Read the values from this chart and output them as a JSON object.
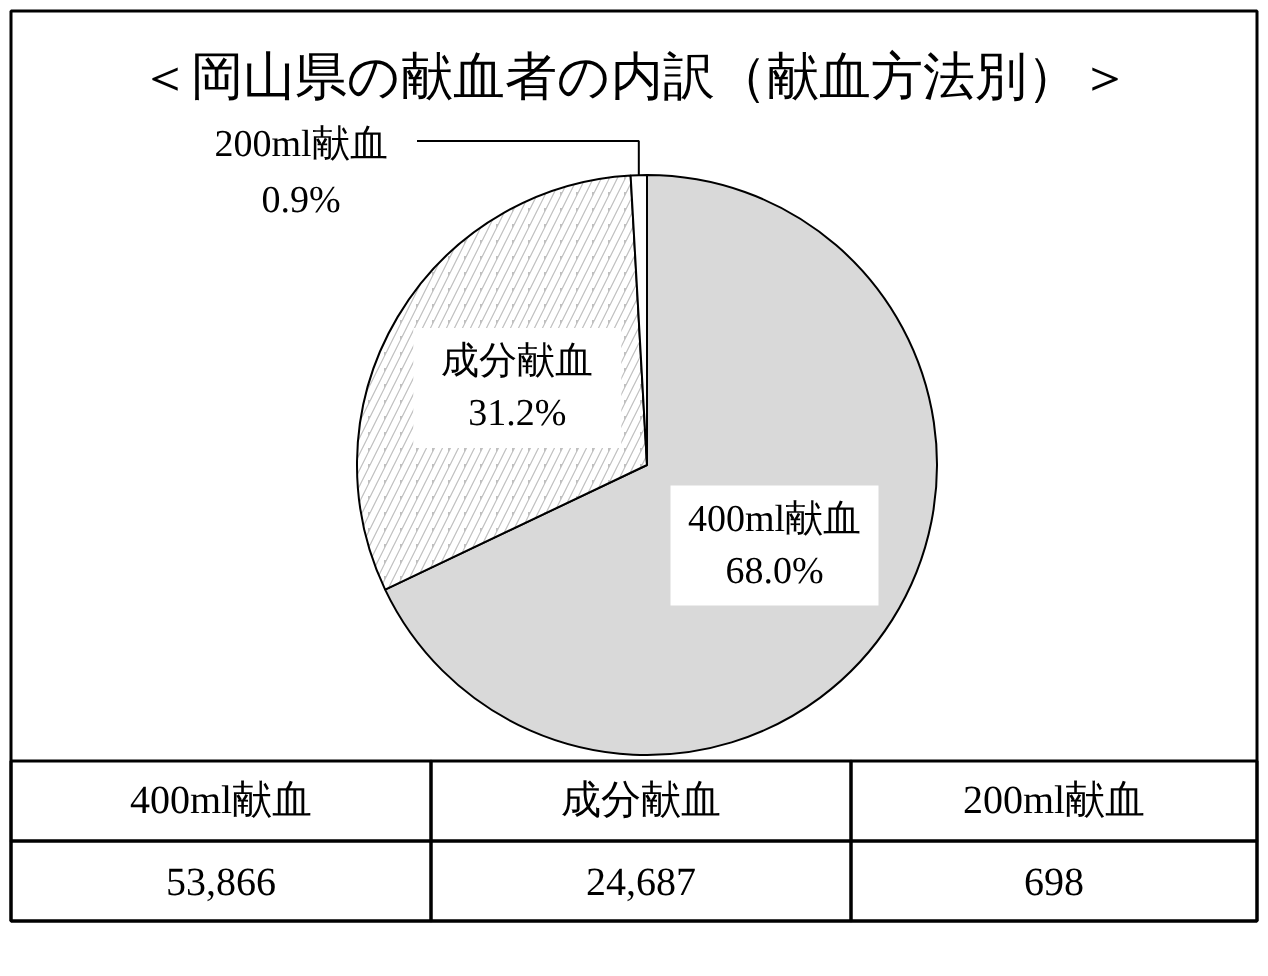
{
  "chart_data": {
    "type": "pie",
    "title": "＜岡山県の献血者の内訳（献血方法別）＞",
    "categories": [
      "400ml献血",
      "成分献血",
      "200ml献血"
    ],
    "values": [
      68.0,
      31.2,
      0.9
    ],
    "annotations": [
      "53,866",
      "24,687",
      "698"
    ],
    "colors": [
      "#d9d9d9",
      "#c0c0c0",
      "#ffffff"
    ],
    "value_labels": [
      "68.0%",
      "31.2%",
      "0.9%"
    ]
  }
}
